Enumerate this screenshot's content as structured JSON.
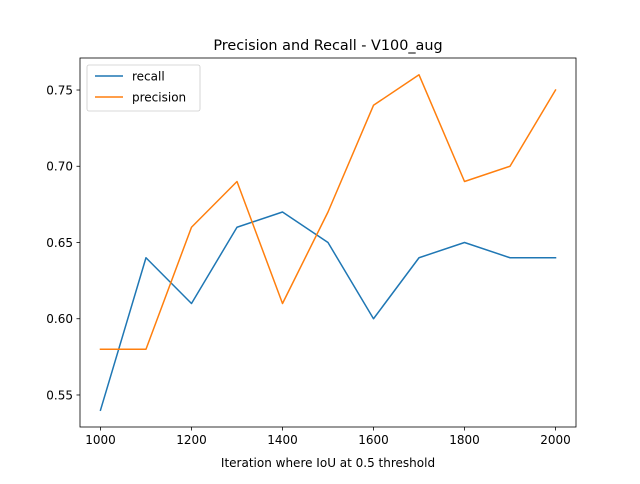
{
  "chart_data": {
    "type": "line",
    "title": "Precision and Recall - V100_aug",
    "xlabel": "Iteration where IoU at 0.5 threshold",
    "ylabel": "",
    "x": [
      1000,
      1100,
      1200,
      1300,
      1400,
      1500,
      1600,
      1700,
      1800,
      1900,
      2000
    ],
    "xlim": [
      955,
      2045
    ],
    "ylim": [
      0.529,
      0.771
    ],
    "xticks": [
      1000,
      1200,
      1400,
      1600,
      1800,
      2000
    ],
    "yticks": [
      0.55,
      0.6,
      0.65,
      0.7,
      0.75
    ],
    "ytick_labels": [
      "0.55",
      "0.60",
      "0.65",
      "0.70",
      "0.75"
    ],
    "legend_position": "top-left",
    "grid": false,
    "series": [
      {
        "name": "recall",
        "color": "#1f77b4",
        "values": [
          0.54,
          0.64,
          0.61,
          0.66,
          0.67,
          0.65,
          0.6,
          0.64,
          0.65,
          0.64,
          0.64
        ]
      },
      {
        "name": "precision",
        "color": "#ff7f0e",
        "values": [
          0.58,
          0.58,
          0.66,
          0.69,
          0.61,
          0.67,
          0.74,
          0.76,
          0.69,
          0.7,
          0.75
        ]
      }
    ]
  }
}
